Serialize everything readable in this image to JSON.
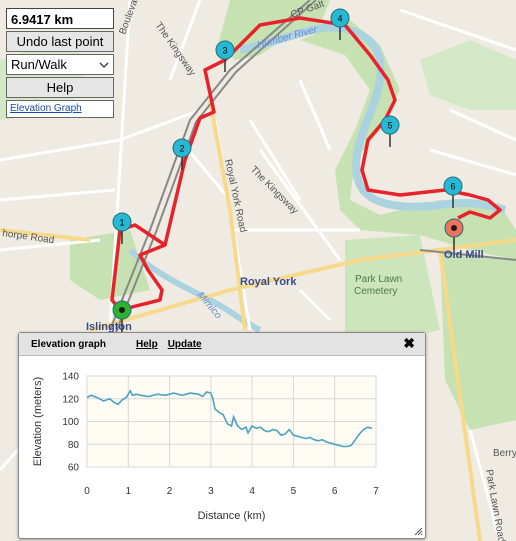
{
  "controls": {
    "distance": "6.9417 km",
    "undo_label": "Undo last point",
    "mode_value": "Run/Walk",
    "help_label": "Help",
    "elevation_link": "Elevation Graph"
  },
  "map_labels": {
    "boulevard": "Boulevard",
    "kingsway_n": "The Kingsway",
    "kingsway_s": "The Kingsway",
    "royal_york_road": "Royal York Road",
    "royal_york": "Royal York",
    "humber_river": "Humber River",
    "cp_galt": "CP Galt",
    "old_mill": "Old Mill",
    "park_lawn": "Park Lawn",
    "cemetery": "Cemetery",
    "mimico": "Mimico",
    "islington": "Islington",
    "thorpe_road": "horpe Road",
    "berry": "Berry",
    "park_lawn_road": "Park Lawn Road"
  },
  "markers": [
    {
      "label": "1",
      "color": "#27b9d4"
    },
    {
      "label": "2",
      "color": "#27b9d4"
    },
    {
      "label": "3",
      "color": "#27b9d4"
    },
    {
      "label": "4",
      "color": "#27b9d4"
    },
    {
      "label": "5",
      "color": "#27b9d4"
    },
    {
      "label": "6",
      "color": "#27b9d4"
    },
    {
      "label": "start",
      "color": "#2db32d"
    },
    {
      "label": "end",
      "color": "#f0725a"
    }
  ],
  "colors": {
    "route": "#e8222a",
    "elevation_line": "#4aa3c0",
    "plot_bg": "#fffdf3"
  },
  "elevation_panel": {
    "title": "Elevation graph",
    "help_label": "Help",
    "update_label": "Update",
    "close_icon": "close-icon"
  },
  "chart_data": {
    "type": "line",
    "xlabel": "Distance (km)",
    "ylabel": "Elevation (meters)",
    "xlim": [
      0,
      7
    ],
    "ylim": [
      60,
      140
    ],
    "xticks": [
      0,
      1,
      2,
      3,
      4,
      5,
      6,
      7
    ],
    "yticks": [
      60,
      80,
      100,
      120,
      140
    ],
    "grid": true,
    "series": [
      {
        "x": [
          0,
          0.1,
          0.25,
          0.4,
          0.55,
          0.65,
          0.75,
          0.85,
          0.95,
          1.05,
          1.1,
          1.2,
          1.3,
          1.5,
          1.7,
          1.9,
          2.1,
          2.3,
          2.5,
          2.7,
          2.8,
          2.9,
          3.0,
          3.05,
          3.1,
          3.2,
          3.3,
          3.4,
          3.5,
          3.55,
          3.65,
          3.75,
          3.85,
          3.9,
          4.0,
          4.1,
          4.2,
          4.3,
          4.4,
          4.5,
          4.6,
          4.7,
          4.8,
          4.9,
          5.0,
          5.1,
          5.2,
          5.3,
          5.4,
          5.5,
          5.6,
          5.7,
          5.8,
          5.9,
          6.0,
          6.1,
          6.2,
          6.3,
          6.4,
          6.5,
          6.6,
          6.7,
          6.8,
          6.9
        ],
        "y": [
          121,
          123,
          121,
          118,
          120,
          117,
          115,
          119,
          121,
          127,
          123,
          124,
          123,
          122,
          124,
          123,
          125,
          123,
          125,
          124,
          122,
          126,
          125,
          120,
          111,
          108,
          106,
          98,
          96,
          104,
          96,
          93,
          95,
          90,
          96,
          94,
          95,
          92,
          91,
          93,
          92,
          88,
          89,
          93,
          88,
          87,
          86,
          85,
          86,
          84,
          83,
          84,
          82,
          81,
          80,
          79,
          78,
          78,
          79,
          84,
          89,
          93,
          95,
          94
        ]
      }
    ]
  }
}
